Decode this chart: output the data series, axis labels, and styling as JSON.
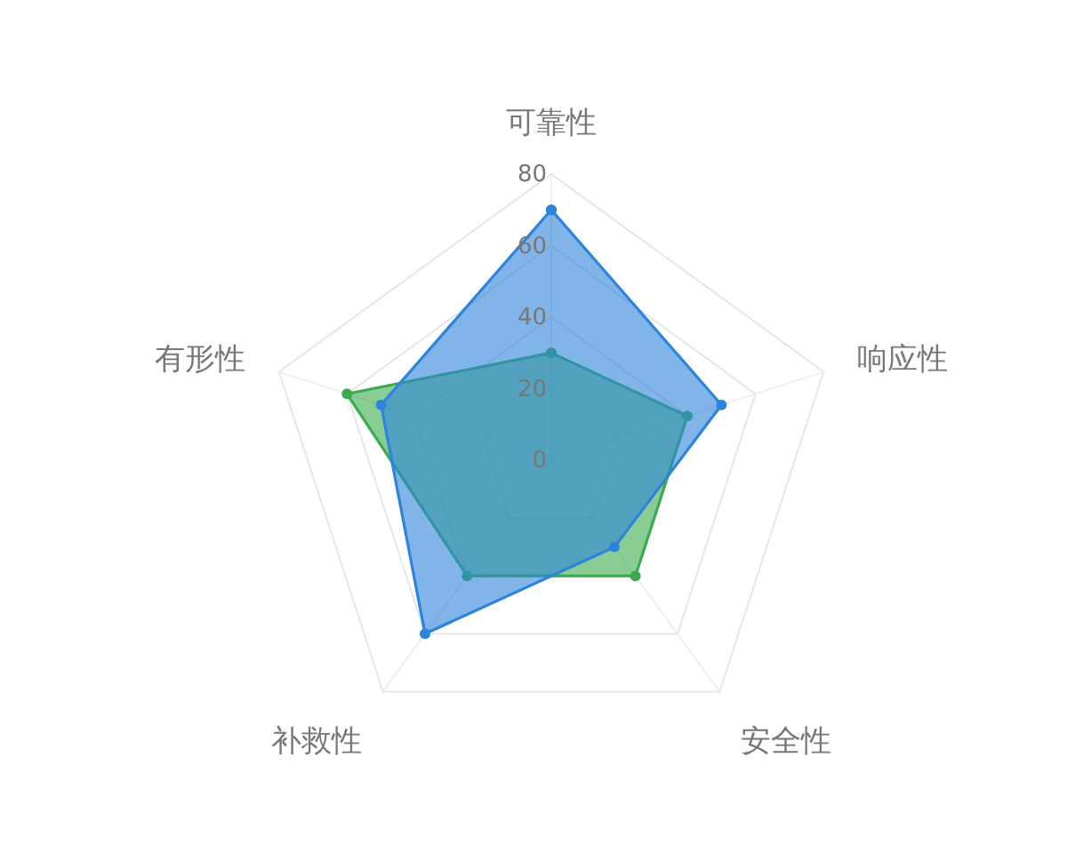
{
  "chart_data": {
    "type": "radar",
    "categories": [
      "可靠性",
      "响应性",
      "安全性",
      "补救性",
      "有形性"
    ],
    "series": [
      {
        "color": "#3bab4c",
        "values": [
          30,
          40,
          40,
          40,
          60
        ]
      },
      {
        "color": "#2d84dc",
        "values": [
          70,
          50,
          30,
          60,
          50
        ]
      }
    ],
    "ylim": [
      0,
      80
    ],
    "yticks": [
      0,
      20,
      40,
      60,
      80
    ],
    "grid": true,
    "marker": "circle"
  }
}
